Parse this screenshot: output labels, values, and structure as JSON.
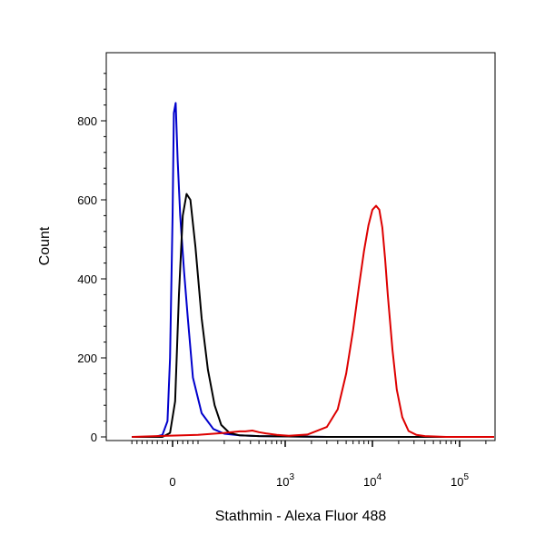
{
  "chart_data": {
    "type": "line",
    "title": "",
    "xlabel": "Stathmin - Alexa Fluor 488",
    "ylabel": "Count",
    "x_scale": "biexponential",
    "ylim": [
      0,
      960
    ],
    "grid": false,
    "legend": "none",
    "y_ticks": [
      {
        "value": 0,
        "label": "0"
      },
      {
        "value": 200,
        "label": "200"
      },
      {
        "value": 400,
        "label": "400"
      },
      {
        "value": 600,
        "label": "600"
      },
      {
        "value": 800,
        "label": "800"
      }
    ],
    "x_ticks": [
      {
        "value": 0,
        "base": "0",
        "exp": ""
      },
      {
        "value": 1000,
        "base": "10",
        "exp": "3"
      },
      {
        "value": 10000,
        "base": "10",
        "exp": "4"
      },
      {
        "value": 100000,
        "base": "10",
        "exp": "5"
      }
    ],
    "series": [
      {
        "color": "#0000cc",
        "x": [
          -160,
          -70,
          -40,
          -20,
          -10,
          0,
          5,
          12,
          20,
          30,
          45,
          60,
          80,
          110,
          150,
          200,
          300,
          500,
          3000,
          100000,
          260000
        ],
        "y": [
          0,
          0,
          5,
          40,
          200,
          560,
          820,
          845,
          700,
          560,
          420,
          300,
          150,
          60,
          20,
          8,
          4,
          2,
          0,
          0,
          0
        ]
      },
      {
        "color": "#000000",
        "x": [
          -160,
          -40,
          -10,
          10,
          25,
          40,
          55,
          70,
          90,
          110,
          130,
          155,
          185,
          230,
          300,
          500,
          3000,
          100000,
          260000
        ],
        "y": [
          0,
          0,
          10,
          90,
          360,
          560,
          615,
          600,
          480,
          300,
          170,
          80,
          30,
          10,
          4,
          2,
          0,
          0,
          0
        ]
      },
      {
        "color": "#dd0000",
        "x": [
          -160,
          -20,
          100,
          200,
          300,
          350,
          420,
          500,
          600,
          800,
          1100,
          1800,
          3000,
          4000,
          5000,
          6000,
          7000,
          8000,
          9000,
          10000,
          11000,
          12000,
          13000,
          14000,
          15000,
          17000,
          19000,
          22000,
          26000,
          32000,
          40000,
          70000,
          260000
        ],
        "y": [
          0,
          3,
          5,
          10,
          14,
          14,
          16,
          12,
          9,
          5,
          3,
          6,
          25,
          70,
          160,
          270,
          380,
          470,
          535,
          575,
          585,
          575,
          530,
          450,
          360,
          220,
          120,
          50,
          15,
          5,
          2,
          0,
          0
        ]
      }
    ]
  }
}
